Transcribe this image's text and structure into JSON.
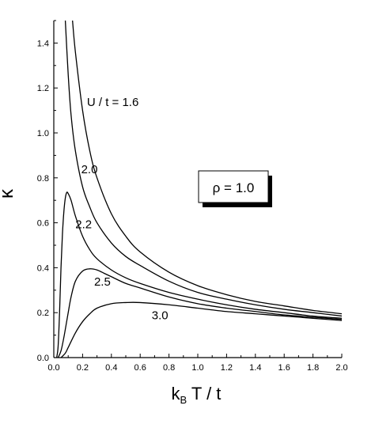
{
  "chart_data": {
    "type": "line",
    "title": "",
    "xlabel": {
      "main": "k",
      "sub": "B",
      "rest": " T / t"
    },
    "ylabel": "κ",
    "xlim": [
      0.0,
      2.0
    ],
    "ylim": [
      0.0,
      1.5
    ],
    "x_ticks": [
      "0.0",
      "0.2",
      "0.4",
      "0.6",
      "0.8",
      "1.0",
      "1.2",
      "1.4",
      "1.6",
      "1.8",
      "2.0"
    ],
    "y_ticks": [
      "0.0",
      "0.2",
      "0.4",
      "0.6",
      "0.8",
      "1.0",
      "1.2",
      "1.4"
    ],
    "grid": false,
    "legend_box": "ρ = 1.0",
    "series": [
      {
        "name": "U / t = 1.6",
        "label": "U / t = 1.6",
        "x": [
          0.13,
          0.15,
          0.2,
          0.25,
          0.3,
          0.4,
          0.5,
          0.6,
          0.8,
          1.0,
          1.2,
          1.4,
          1.6,
          1.8,
          2.0
        ],
        "y": [
          1.5,
          1.36,
          1.1,
          0.92,
          0.8,
          0.64,
          0.54,
          0.47,
          0.38,
          0.32,
          0.28,
          0.25,
          0.23,
          0.21,
          0.195
        ]
      },
      {
        "name": "2.0",
        "label": "2.0",
        "x": [
          0.08,
          0.1,
          0.12,
          0.15,
          0.2,
          0.25,
          0.3,
          0.4,
          0.5,
          0.6,
          0.8,
          1.0,
          1.2,
          1.4,
          1.6,
          1.8,
          2.0
        ],
        "y": [
          1.5,
          1.26,
          1.08,
          0.92,
          0.76,
          0.67,
          0.6,
          0.51,
          0.45,
          0.41,
          0.34,
          0.29,
          0.26,
          0.235,
          0.215,
          0.2,
          0.185
        ]
      },
      {
        "name": "2.2",
        "label": "2.2",
        "x": [
          0.02,
          0.03,
          0.04,
          0.05,
          0.06,
          0.07,
          0.08,
          0.09,
          0.1,
          0.12,
          0.15,
          0.2,
          0.25,
          0.3,
          0.4,
          0.5,
          0.6,
          0.8,
          1.0,
          1.2,
          1.4,
          1.6,
          1.8,
          2.0
        ],
        "y": [
          0.0,
          0.05,
          0.2,
          0.4,
          0.55,
          0.65,
          0.71,
          0.735,
          0.73,
          0.7,
          0.63,
          0.54,
          0.48,
          0.44,
          0.39,
          0.355,
          0.33,
          0.29,
          0.26,
          0.235,
          0.215,
          0.2,
          0.185,
          0.175
        ]
      },
      {
        "name": "2.5",
        "label": "2.5",
        "x": [
          0.03,
          0.05,
          0.07,
          0.1,
          0.12,
          0.15,
          0.2,
          0.25,
          0.3,
          0.35,
          0.4,
          0.5,
          0.6,
          0.8,
          1.0,
          1.2,
          1.4,
          1.6,
          1.8,
          2.0
        ],
        "y": [
          0.0,
          0.03,
          0.09,
          0.2,
          0.27,
          0.34,
          0.385,
          0.395,
          0.39,
          0.375,
          0.36,
          0.33,
          0.31,
          0.27,
          0.24,
          0.22,
          0.205,
          0.19,
          0.18,
          0.17
        ]
      },
      {
        "name": "3.0",
        "label": "3.0",
        "x": [
          0.05,
          0.08,
          0.1,
          0.15,
          0.2,
          0.25,
          0.3,
          0.4,
          0.5,
          0.6,
          0.8,
          1.0,
          1.2,
          1.4,
          1.6,
          1.8,
          2.0
        ],
        "y": [
          0.0,
          0.02,
          0.045,
          0.11,
          0.16,
          0.195,
          0.22,
          0.24,
          0.245,
          0.245,
          0.235,
          0.22,
          0.205,
          0.195,
          0.185,
          0.175,
          0.165
        ]
      }
    ],
    "annotations": [
      {
        "text": "U / t = 1.6",
        "x": 0.23,
        "y": 1.12
      },
      {
        "text": "2.0",
        "x": 0.19,
        "y": 0.82
      },
      {
        "text": "2.2",
        "x": 0.15,
        "y": 0.575
      },
      {
        "text": "2.5",
        "x": 0.28,
        "y": 0.32
      },
      {
        "text": "3.0",
        "x": 0.68,
        "y": 0.17
      }
    ]
  }
}
